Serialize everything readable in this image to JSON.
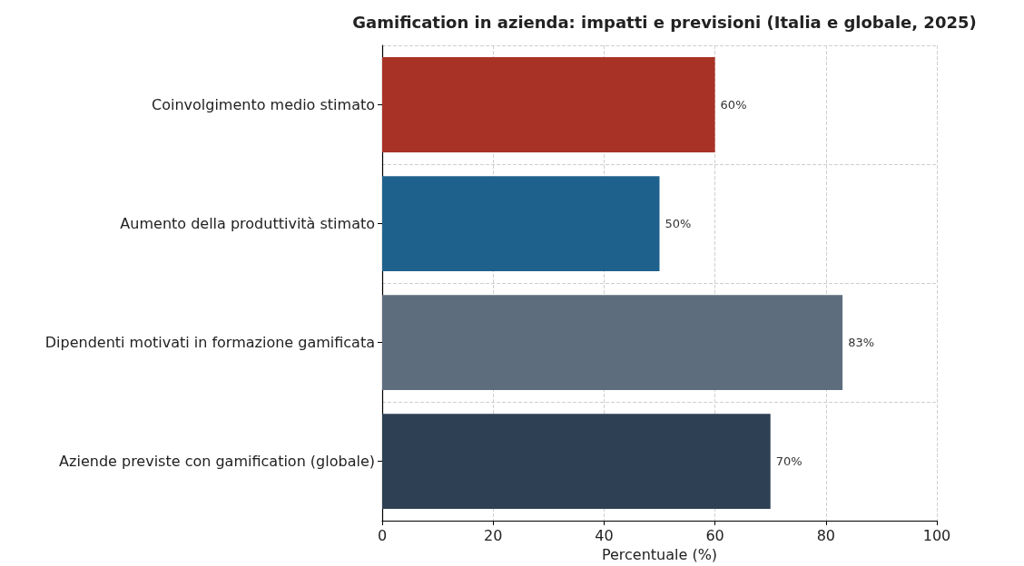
{
  "chart_data": {
    "type": "bar",
    "orientation": "horizontal",
    "title": "Gamification in azienda: impatti e previsioni (Italia e globale, 2025)",
    "xlabel": "Percentuale (%)",
    "categories": [
      "Coinvolgimento medio stimato",
      "Aumento della produttività stimato",
      "Dipendenti motivati in formazione gamificata",
      "Aziende previste con gamification (globale)"
    ],
    "values": [
      60,
      50,
      83,
      70
    ],
    "colors": [
      "#a93226",
      "#1f618d",
      "#5d6d7e",
      "#2e4053"
    ],
    "value_labels": [
      "60%",
      "50%",
      "83%",
      "70%"
    ],
    "xlim": [
      0,
      100
    ],
    "xticks": [
      0,
      20,
      40,
      60,
      80,
      100
    ],
    "grid": true
  }
}
